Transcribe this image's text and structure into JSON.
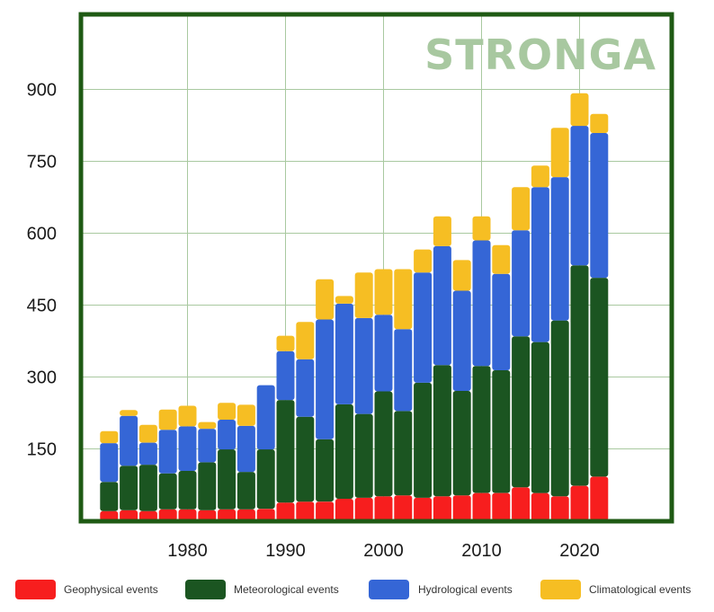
{
  "watermark": "STRONGA",
  "colors": {
    "frame": "#1f5a14",
    "grid": "#a9c9a0",
    "watermark": "#a8c8a0",
    "geophysical": "#f71e1e",
    "meteorological": "#1b5521",
    "hydrological": "#3566d6",
    "climatological": "#f6be23"
  },
  "chart_data": {
    "type": "bar",
    "stacked": true,
    "x": [
      1972,
      1974,
      1976,
      1978,
      1980,
      1982,
      1984,
      1986,
      1988,
      1990,
      1992,
      1994,
      1996,
      1998,
      2000,
      2002,
      2004,
      2006,
      2008,
      2010,
      2012,
      2014,
      2016,
      2018,
      2020,
      2022
    ],
    "x_ticks": [
      "1980",
      "1990",
      "2000",
      "2010",
      "2020"
    ],
    "y_ticks": [
      "150",
      "300",
      "450",
      "600",
      "750",
      "900"
    ],
    "ylim": [
      0,
      1000
    ],
    "xlim": [
      1970,
      2027
    ],
    "grid": true,
    "legend_position": "bottom",
    "series": [
      {
        "name": "Geophysical events",
        "color_key": "geophysical",
        "values": [
          20,
          22,
          20,
          24,
          24,
          22,
          24,
          24,
          25,
          38,
          40,
          40,
          46,
          48,
          51,
          53,
          48,
          51,
          53,
          58,
          58,
          70,
          58,
          51,
          73,
          92
        ]
      },
      {
        "name": "Meteorological events",
        "color_key": "meteorological",
        "values": [
          61,
          93,
          97,
          75,
          80,
          100,
          125,
          78,
          124,
          214,
          177,
          130,
          197,
          175,
          219,
          176,
          240,
          274,
          218,
          265,
          256,
          315,
          315,
          367,
          460,
          415
        ]
      },
      {
        "name": "Hydrological events",
        "color_key": "hydrological",
        "values": [
          81,
          104,
          46,
          91,
          93,
          70,
          62,
          96,
          134,
          102,
          120,
          250,
          210,
          200,
          160,
          171,
          230,
          248,
          209,
          262,
          201,
          221,
          323,
          299,
          291,
          302
        ]
      },
      {
        "name": "Climatological events",
        "color_key": "climatological",
        "values": [
          25,
          12,
          37,
          42,
          43,
          14,
          35,
          44,
          0,
          32,
          78,
          84,
          16,
          95,
          95,
          125,
          48,
          62,
          64,
          50,
          60,
          90,
          45,
          103,
          68,
          40
        ]
      }
    ]
  }
}
